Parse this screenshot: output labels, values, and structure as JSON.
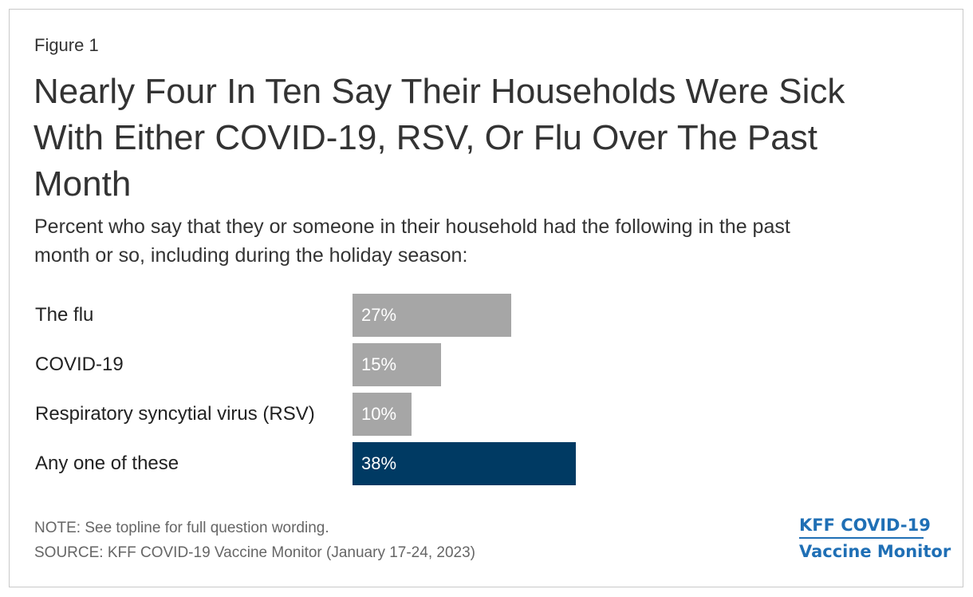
{
  "figure_label": "Figure 1",
  "title_lines": [
    "Nearly Four In Ten Say Their Households Were Sick",
    "With Either COVID-19, RSV, Or Flu Over The Past",
    "Month"
  ],
  "subtitle_lines": [
    "Percent who say that they or someone in their household had the following in the past",
    "month or so, including during the holiday season:"
  ],
  "chart_data": {
    "type": "bar",
    "orientation": "horizontal",
    "categories": [
      "The flu",
      "COVID-19",
      "Respiratory syncytial virus (RSV)",
      "Any one of these"
    ],
    "values": [
      27,
      15,
      10,
      38
    ],
    "value_labels": [
      "27%",
      "15%",
      "10%",
      "38%"
    ],
    "colors": [
      "#a6a6a6",
      "#a6a6a6",
      "#a6a6a6",
      "#003a63"
    ],
    "xlim": [
      0,
      100
    ],
    "grid": false
  },
  "note": "NOTE: See topline for full question wording.",
  "source": "SOURCE: KFF COVID-19 Vaccine Monitor (January 17-24, 2023)",
  "brand": {
    "line1": "KFF COVID-19",
    "line2": "Vaccine Monitor",
    "color": "#1f6fb5"
  }
}
